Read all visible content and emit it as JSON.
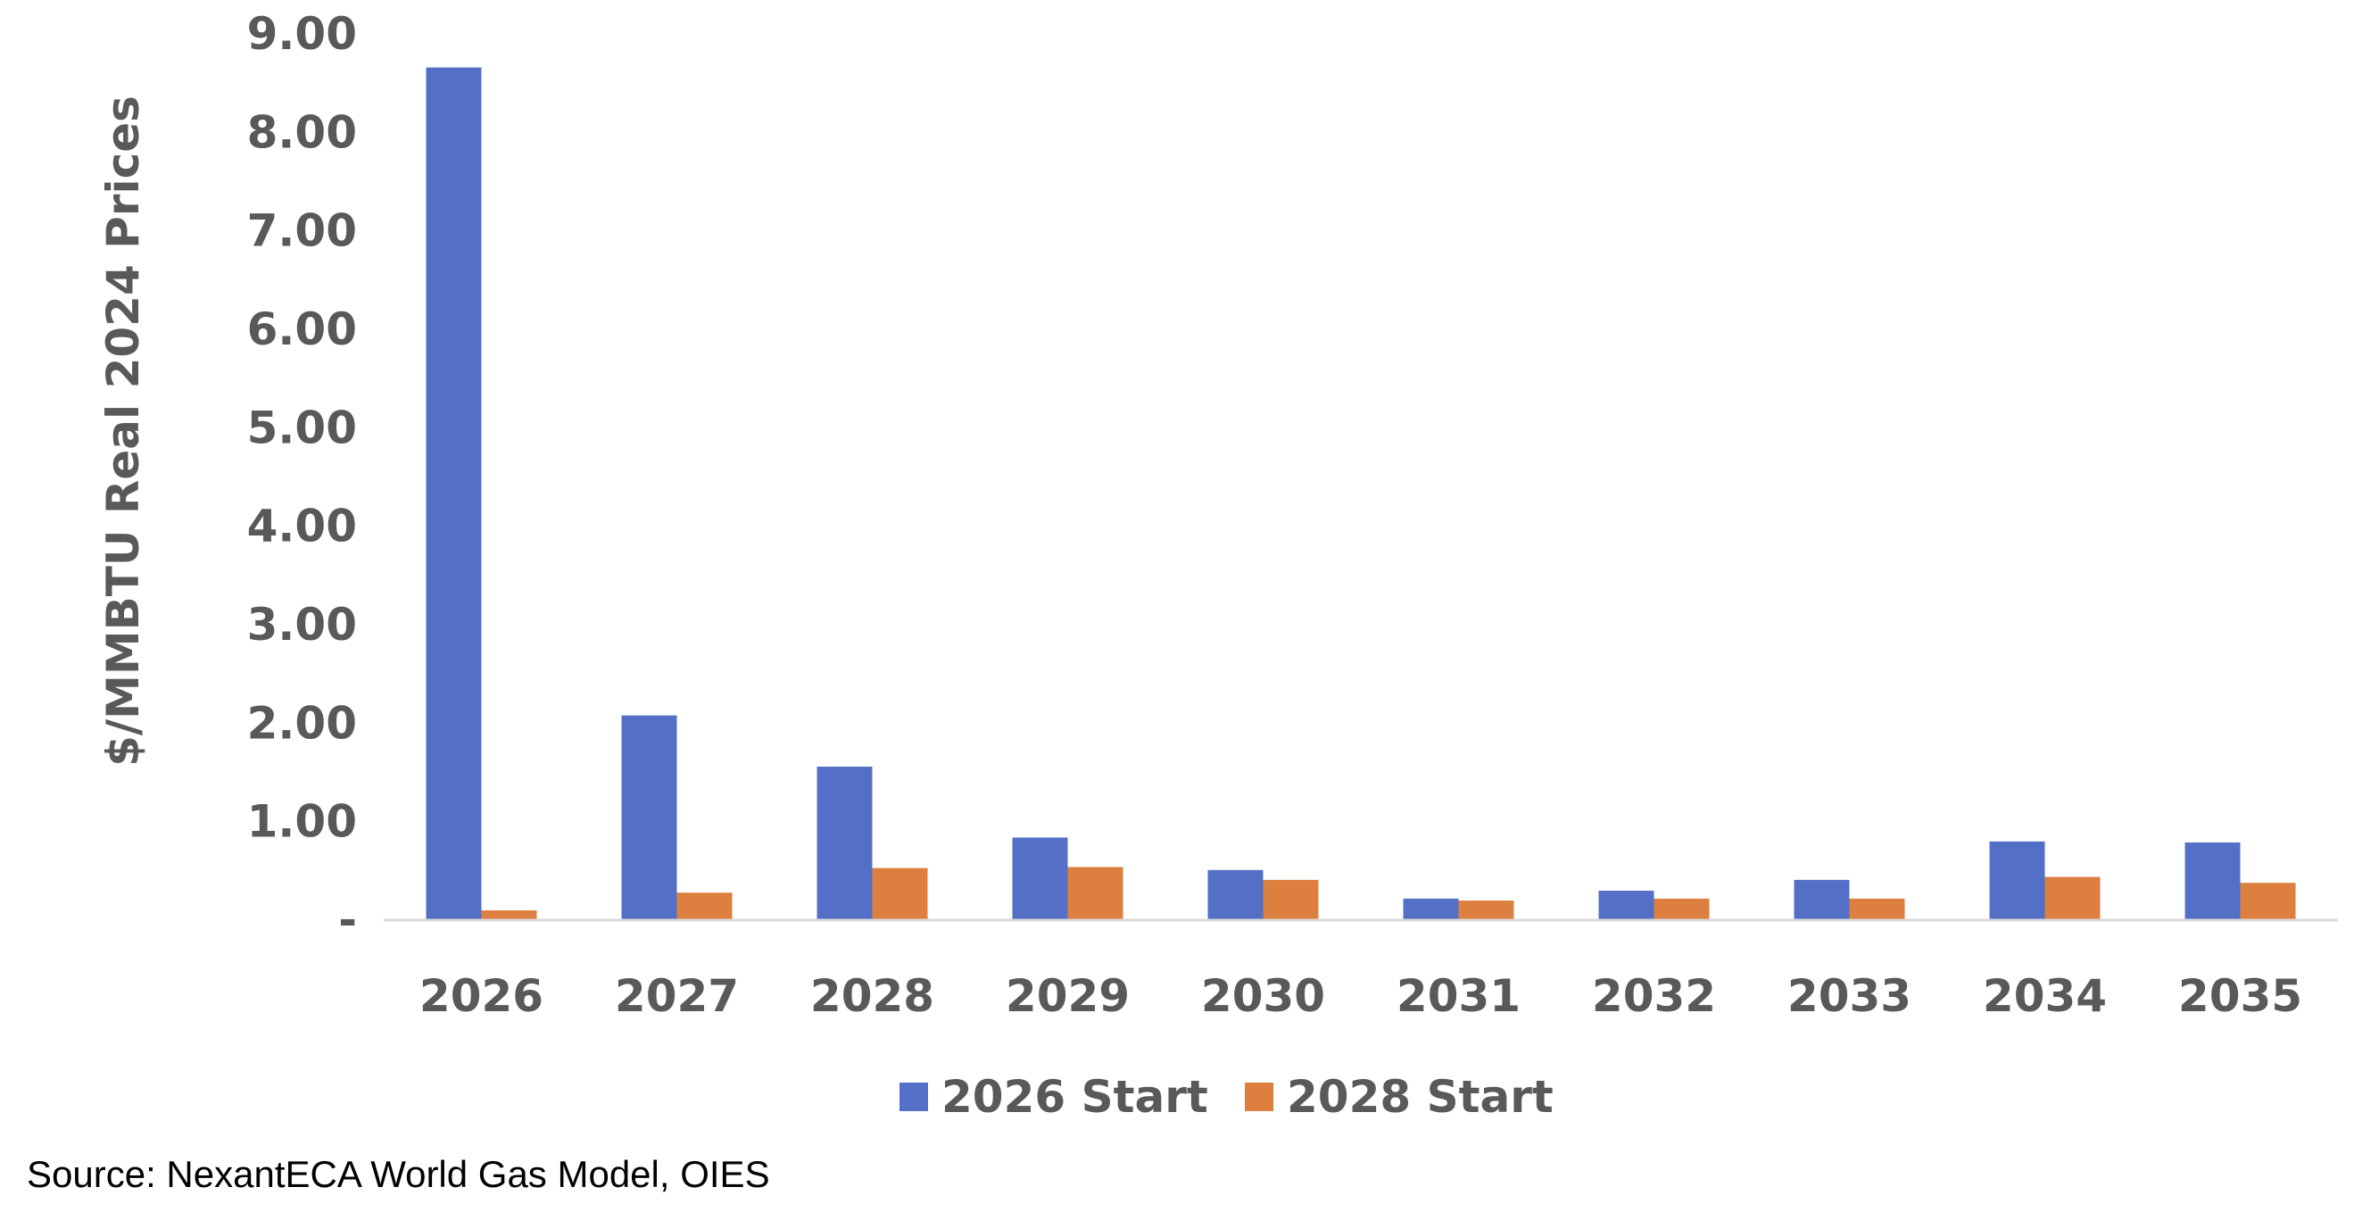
{
  "chart_data": {
    "type": "bar",
    "title": "",
    "xlabel": "",
    "ylabel": "$/MMBTU Real 2024 Prices",
    "ylim": [
      0,
      9
    ],
    "yticks": [
      0,
      1,
      2,
      3,
      4,
      5,
      6,
      7,
      8,
      9
    ],
    "ytick_labels": [
      "-",
      "1.00",
      "2.00",
      "3.00",
      "4.00",
      "5.00",
      "6.00",
      "7.00",
      "8.00",
      "9.00"
    ],
    "categories": [
      "2026",
      "2027",
      "2028",
      "2029",
      "2030",
      "2031",
      "2032",
      "2033",
      "2034",
      "2035"
    ],
    "series": [
      {
        "name": "2026 Start",
        "color": "#5470c6",
        "values": [
          8.65,
          2.07,
          1.55,
          0.83,
          0.5,
          0.21,
          0.29,
          0.4,
          0.79,
          0.78
        ]
      },
      {
        "name": "2028 Start",
        "color": "#dd7f3e",
        "values": [
          0.09,
          0.27,
          0.52,
          0.53,
          0.4,
          0.19,
          0.21,
          0.21,
          0.43,
          0.37
        ]
      }
    ],
    "legend_position": "bottom",
    "grid": false
  },
  "footer": {
    "source": "Source: NexantECA World Gas Model, OIES"
  }
}
